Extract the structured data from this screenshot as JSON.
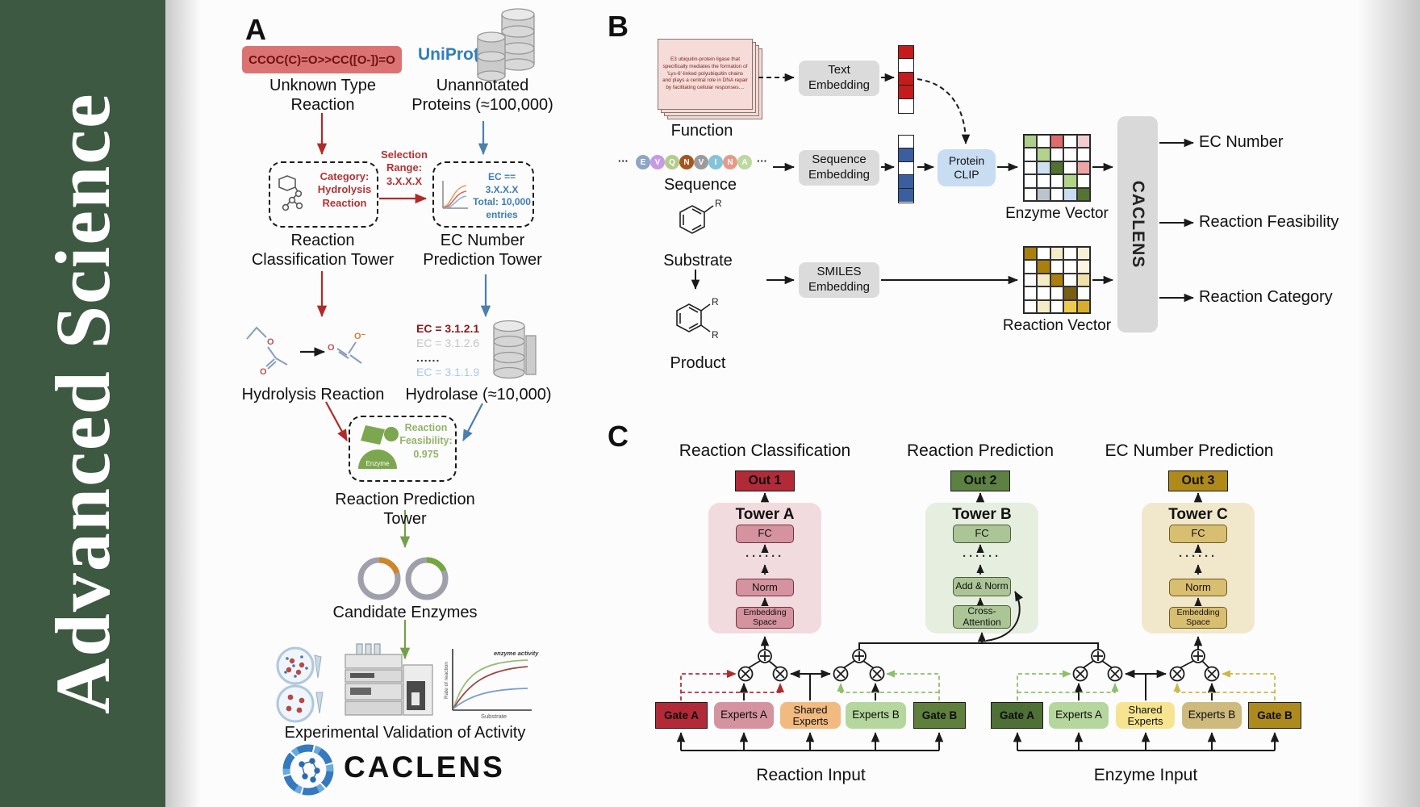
{
  "journal": {
    "name": "Advanced Science"
  },
  "colors": {
    "sidebar_green": "#3d5941",
    "arrow_red": "#af2b2b",
    "arrow_blue": "#4b7fac",
    "arrow_green": "#73a04a",
    "crimson": "#b22a38",
    "out_green": "#5c8142",
    "out_gold": "#b08a18",
    "uniprot_blue": "#2f7eb9",
    "smiles_box_bg": "#db7373"
  },
  "panelA": {
    "label": "A",
    "smiles": "CCOC(C)=O>>CC([O-])=O",
    "unknown_type": "Unknown Type\nReaction",
    "uniprot": "UniProt",
    "unannotated": "Unannotated\nProteins (≈100,000)",
    "category_box": "Category:\nHydrolysis\nReaction",
    "selection": "Selection\nRange:\n3.X.X.X",
    "ec_box": "EC == 3.X.X.X\nTotal: 10,000\nentries",
    "classification_tower": "Reaction\nClassification Tower",
    "ec_tower": "EC Number\nPrediction Tower",
    "hydrolysis": "Hydrolysis Reaction",
    "ec_list": [
      "EC = 3.1.2.1",
      "EC = 3.1.2.6",
      "......",
      "EC = 3.1.1.9"
    ],
    "hydrolase": "Hydrolase (≈10,000)",
    "enzyme_badge": "Enzyme",
    "feasibility": "Reaction\nFeasibility:\n0.975",
    "prediction_tower": "Reaction Prediction Tower",
    "candidates": "Candidate Enzymes",
    "validation": "Experimental Validation of Activity",
    "wordmark": "CACLENS",
    "activity_plot": {
      "annotation": "enzyme activity",
      "ylabel": "Rate of reaction",
      "xlabel": "Substrate"
    }
  },
  "panelB": {
    "label": "B",
    "function_card": "E3 ubiquitin-protein ligase that specifically mediates the formation of 'Lys-6'-linked polyubiquitin chains and plays a central role in DNA repair by facilitating cellular responses....",
    "function": "Function",
    "ellipsis": "···",
    "residues": [
      {
        "letter": "E",
        "color": "#8ea5c5"
      },
      {
        "letter": "V",
        "color": "#c59be3"
      },
      {
        "letter": "Q",
        "color": "#b3cc8b"
      },
      {
        "letter": "N",
        "color": "#a3561d"
      },
      {
        "letter": "V",
        "color": "#9b9b9b"
      },
      {
        "letter": "I",
        "color": "#85c3d8"
      },
      {
        "letter": "N",
        "color": "#e59a89"
      },
      {
        "letter": "A",
        "color": "#bcd9a0"
      }
    ],
    "sequence": "Sequence",
    "substrate": "Substrate",
    "product": "Product",
    "r_group": "R",
    "text_embedding": "Text\nEmbedding",
    "sequence_embedding": "Sequence\nEmbedding",
    "smiles_embedding": "SMILES\nEmbedding",
    "protein_clip": "Protein\nCLIP",
    "text_vector": [
      "#c41c1c",
      "#ffffff",
      "#c41c1c",
      "#c41c1c",
      "#ffffff"
    ],
    "sequence_vector": [
      "#ffffff",
      "#3b5f9e",
      "#ffffff",
      "#3b5f9e",
      "#3b5f9e"
    ],
    "enzyme_vector_label": "Enzyme Vector",
    "reaction_vector_label": "Reaction Vector",
    "enzyme_grid": [
      "#aece8c",
      "#ffffff",
      "#e06b6b",
      "#ffffff",
      "#f4cbd1",
      "#ffffff",
      "#b2d28e",
      "#ffffff",
      "#ffffff",
      "#ffffff",
      "#ffffff",
      "#cfe0f2",
      "#4e7230",
      "#ffffff",
      "#efa4a4",
      "#ffffff",
      "#ffffff",
      "#ffffff",
      "#b0d488",
      "#ffffff",
      "#ffffff",
      "#b9c4ce",
      "#ffffff",
      "#c8dcf0",
      "#55742f"
    ],
    "reaction_grid": [
      "#ab7f0d",
      "#ffffff",
      "#f4ecc6",
      "#ffffff",
      "#f7f0d6",
      "#ffffff",
      "#ab7f0d",
      "#ffffff",
      "#ffffff",
      "#fbf5e1",
      "#ffffff",
      "#f4ecc6",
      "#ab7f0d",
      "#ffffff",
      "#efdfa8",
      "#ffffff",
      "#ffffff",
      "#ffffff",
      "#7a5f12",
      "#ffffff",
      "#ffffff",
      "#f4ecc6",
      "#ffffff",
      "#edcb4e",
      "#d8ad2e"
    ],
    "caclens": "CACLENS",
    "outputs": [
      "EC Number",
      "Reaction Feasibility",
      "Reaction Category"
    ]
  },
  "panelC": {
    "label": "C",
    "columns": [
      {
        "header": "Reaction Classification",
        "out": "Out 1",
        "tower": "Tower A",
        "fc": "FC",
        "dots": "······",
        "mid": "Norm",
        "bottom": "Embedding\nSpace"
      },
      {
        "header": "Reaction Prediction",
        "out": "Out 2",
        "tower": "Tower B",
        "fc": "FC",
        "dots": "······",
        "mid": "Add & Norm",
        "bottom": "Cross-\nAttention"
      },
      {
        "header": "EC Number Prediction",
        "out": "Out 3",
        "tower": "Tower C",
        "fc": "FC",
        "dots": "······",
        "mid": "Norm",
        "bottom": "Embedding\nSpace"
      }
    ],
    "groups": [
      {
        "gate_a": "Gate A",
        "experts_a": "Experts A",
        "shared": "Shared\nExperts",
        "experts_b": "Experts B",
        "gate_b": "Gate B",
        "input": "Reaction Input"
      },
      {
        "gate_a": "Gate A",
        "experts_a": "Experts A",
        "shared": "Shared\nExperts",
        "experts_b": "Experts B",
        "gate_b": "Gate B",
        "input": "Enzyme Input"
      }
    ]
  }
}
